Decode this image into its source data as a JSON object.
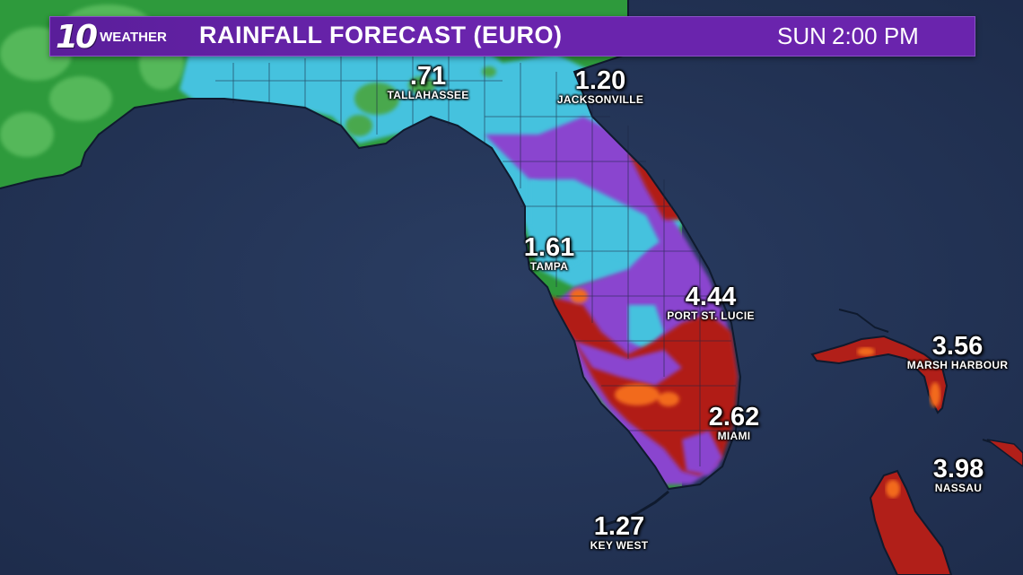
{
  "header": {
    "logo_number": "10",
    "logo_word": "WEATHER",
    "title": "RAINFALL FORECAST (EURO)",
    "day": "SUN",
    "time": "2:00 PM"
  },
  "colors": {
    "ocean": "#223354",
    "land_green": "#2e9a3c",
    "land_light_green": "#59c05a",
    "rain_cyan": "#45c2de",
    "rain_light_blue": "#7ad4ea",
    "rain_purple": "#8a45cf",
    "rain_red": "#b11f19",
    "rain_orange": "#f26a1e",
    "header_purple": "#6a24ad"
  },
  "cities": [
    {
      "value": ".71",
      "name": "TALLAHASSEE"
    },
    {
      "value": "1.20",
      "name": "JACKSONVILLE"
    },
    {
      "value": "1.61",
      "name": "TAMPA"
    },
    {
      "value": "4.44",
      "name": "PORT ST. LUCIE"
    },
    {
      "value": "3.56",
      "name": "MARSH HARBOUR"
    },
    {
      "value": "2.62",
      "name": "MIAMI"
    },
    {
      "value": "3.98",
      "name": "NASSAU"
    },
    {
      "value": "1.27",
      "name": "KEY WEST"
    }
  ]
}
